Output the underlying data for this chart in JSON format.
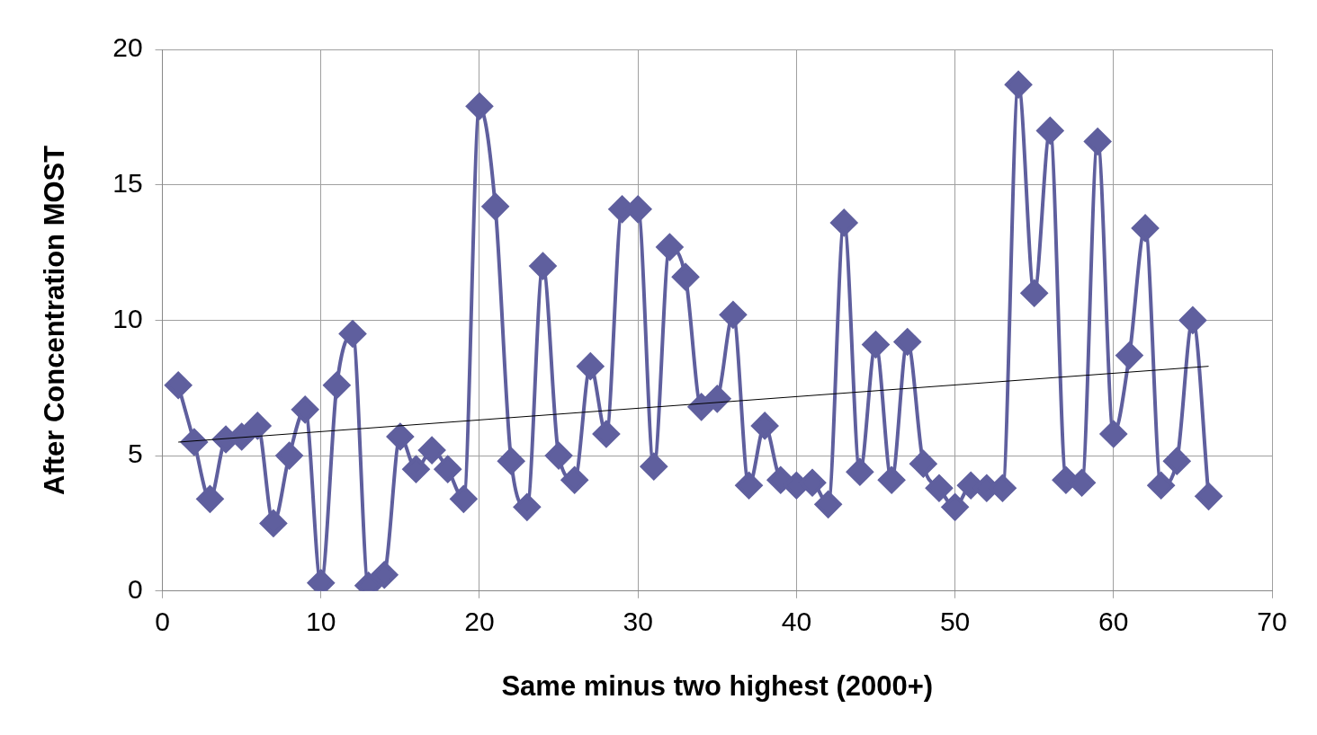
{
  "chart_data": {
    "type": "line",
    "xlabel": "Same minus two highest (2000+)",
    "ylabel": "After Concentration MOST",
    "xlim": [
      0,
      70
    ],
    "xticks": [
      0,
      10,
      20,
      30,
      40,
      50,
      60,
      70
    ],
    "ylim": [
      0,
      20
    ],
    "yticks": [
      0,
      5,
      10,
      15,
      20
    ],
    "grid": true,
    "legend": false,
    "marker": "diamond",
    "series": [
      {
        "color": "#5f5f9e",
        "x": [
          1,
          2,
          3,
          4,
          5,
          6,
          7,
          8,
          9,
          10,
          11,
          12,
          13,
          14,
          15,
          16,
          17,
          18,
          19,
          20,
          21,
          22,
          23,
          24,
          25,
          26,
          27,
          28,
          29,
          30,
          31,
          32,
          33,
          34,
          35,
          36,
          37,
          38,
          39,
          40,
          41,
          42,
          43,
          44,
          45,
          46,
          47,
          48,
          49,
          50,
          51,
          52,
          53,
          54,
          55,
          56,
          57,
          58,
          59,
          60,
          61,
          62,
          63,
          64,
          65,
          66
        ],
        "values": [
          7.6,
          5.5,
          3.4,
          5.6,
          5.7,
          6.1,
          2.5,
          5.0,
          6.7,
          0.3,
          7.6,
          9.5,
          0.2,
          0.6,
          5.7,
          4.5,
          5.2,
          4.5,
          3.4,
          17.9,
          14.2,
          4.8,
          3.1,
          12.0,
          5.0,
          4.1,
          8.3,
          5.8,
          14.1,
          14.1,
          4.6,
          12.7,
          11.6,
          6.8,
          7.1,
          10.2,
          3.9,
          6.1,
          4.1,
          3.9,
          4.0,
          3.2,
          13.6,
          4.4,
          9.1,
          4.1,
          9.2,
          4.7,
          3.8,
          3.1,
          3.9,
          3.8,
          3.8,
          18.7,
          11.0,
          17.0,
          4.1,
          4.0,
          16.6,
          5.8,
          8.7,
          13.4,
          3.9,
          4.8,
          10.0,
          3.5
        ]
      },
      {
        "type": "line",
        "color": "#000000",
        "marker": "none",
        "x": [
          1,
          66
        ],
        "values": [
          5.5,
          8.3
        ]
      }
    ]
  }
}
